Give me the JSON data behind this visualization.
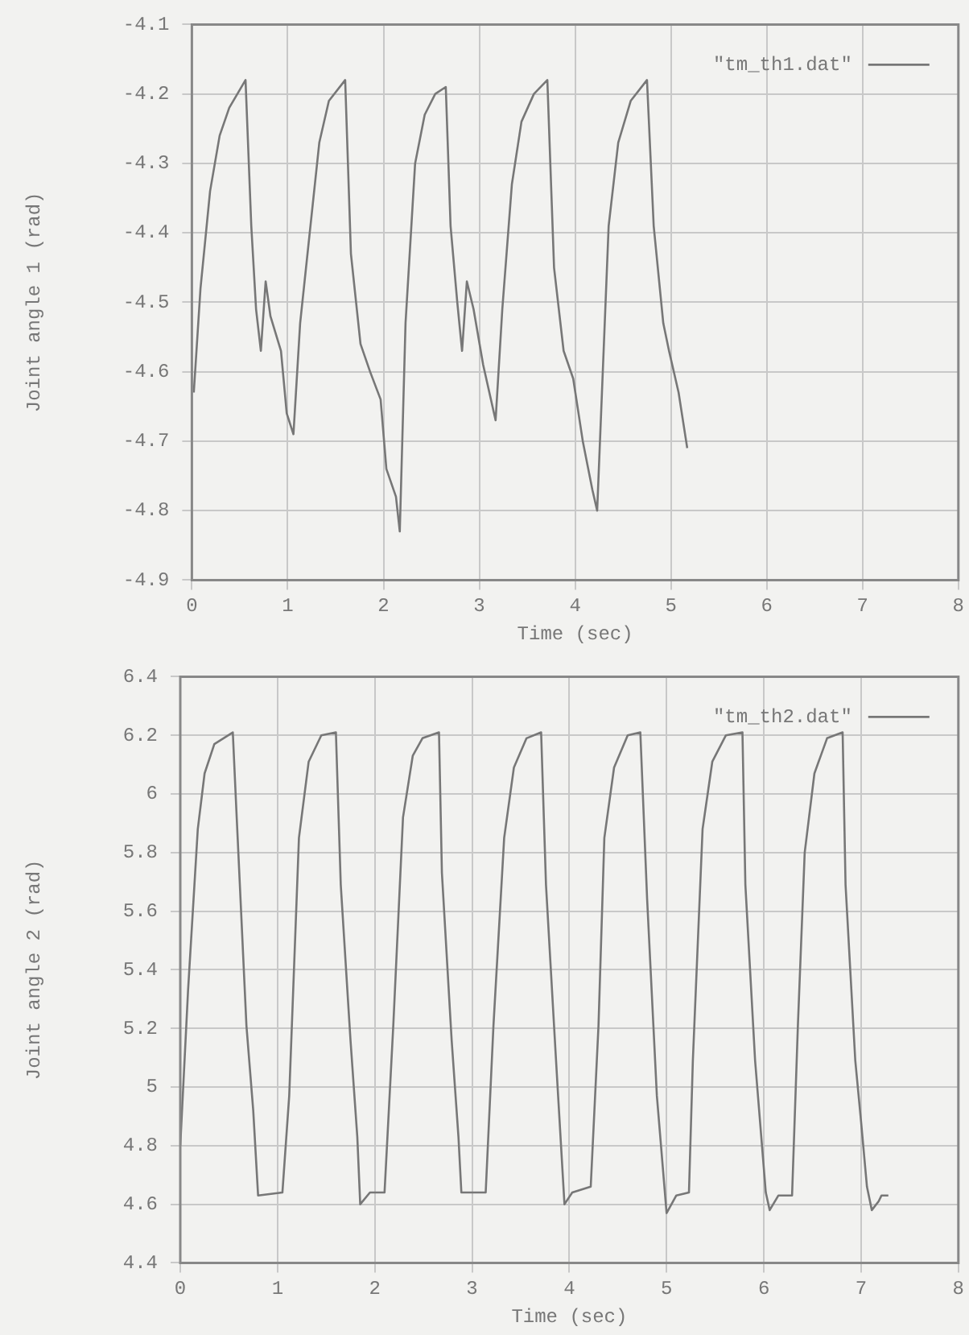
{
  "chart_data": [
    {
      "type": "line",
      "xlabel": "Time (sec)",
      "ylabel": "Joint angle 1 (rad)",
      "xlim": [
        0,
        8
      ],
      "xticks": [
        0,
        1,
        2,
        3,
        4,
        5,
        6,
        7,
        8
      ],
      "ylim": [
        -4.9,
        -4.1
      ],
      "yticks": [
        -4.9,
        -4.8,
        -4.7,
        -4.6,
        -4.5,
        -4.4,
        -4.3,
        -4.2,
        -4.1
      ],
      "grid": true,
      "legend": "top right",
      "line_style": "solid",
      "marker": "none",
      "series": [
        {
          "name": "\"tm_th1.dat\"",
          "color": "#777777",
          "x": [
            0.02,
            0.09,
            0.19,
            0.29,
            0.39,
            0.56,
            0.62,
            0.67,
            0.72,
            0.77,
            0.82,
            0.93,
            0.99,
            1.06,
            1.13,
            1.23,
            1.33,
            1.43,
            1.6,
            1.66,
            1.76,
            1.86,
            1.97,
            2.03,
            2.13,
            2.17,
            2.23,
            2.33,
            2.43,
            2.54,
            2.65,
            2.7,
            2.77,
            2.82,
            2.87,
            2.94,
            3.04,
            3.17,
            3.24,
            3.34,
            3.44,
            3.57,
            3.71,
            3.78,
            3.88,
            3.98,
            4.08,
            4.18,
            4.23,
            4.28,
            4.35,
            4.45,
            4.58,
            4.75,
            4.82,
            4.92,
            4.98,
            5.08,
            5.17
          ],
          "values": [
            -4.63,
            -4.48,
            -4.34,
            -4.26,
            -4.22,
            -4.18,
            -4.39,
            -4.51,
            -4.57,
            -4.47,
            -4.52,
            -4.57,
            -4.66,
            -4.69,
            -4.53,
            -4.4,
            -4.27,
            -4.21,
            -4.18,
            -4.43,
            -4.56,
            -4.6,
            -4.64,
            -4.74,
            -4.78,
            -4.83,
            -4.53,
            -4.3,
            -4.23,
            -4.2,
            -4.19,
            -4.39,
            -4.5,
            -4.57,
            -4.47,
            -4.51,
            -4.59,
            -4.67,
            -4.51,
            -4.33,
            -4.24,
            -4.2,
            -4.18,
            -4.45,
            -4.57,
            -4.61,
            -4.7,
            -4.77,
            -4.8,
            -4.63,
            -4.39,
            -4.27,
            -4.21,
            -4.18,
            -4.39,
            -4.53,
            -4.57,
            -4.63,
            -4.71
          ]
        }
      ]
    },
    {
      "type": "line",
      "xlabel": "Time (sec)",
      "ylabel": "Joint angle 2 (rad)",
      "xlim": [
        0,
        8
      ],
      "xticks": [
        0,
        1,
        2,
        3,
        4,
        5,
        6,
        7,
        8
      ],
      "ylim": [
        4.4,
        6.4
      ],
      "yticks": [
        4.4,
        4.6,
        4.8,
        5,
        5.2,
        5.4,
        5.6,
        5.8,
        6,
        6.2,
        6.4
      ],
      "grid": true,
      "legend": "top right",
      "line_style": "solid",
      "marker": "none",
      "series": [
        {
          "name": "\"tm_th2.dat\"",
          "color": "#777777",
          "x": [
            0,
            0.08,
            0.18,
            0.25,
            0.35,
            0.54,
            0.58,
            0.68,
            0.75,
            0.8,
            1.05,
            1.12,
            1.22,
            1.32,
            1.45,
            1.6,
            1.65,
            1.75,
            1.82,
            1.85,
            1.95,
            2.1,
            2.19,
            2.29,
            2.39,
            2.49,
            2.66,
            2.69,
            2.79,
            2.86,
            2.89,
            3.14,
            3.22,
            3.33,
            3.43,
            3.56,
            3.71,
            3.76,
            3.86,
            3.95,
            4.03,
            4.22,
            4.3,
            4.36,
            4.46,
            4.6,
            4.73,
            4.8,
            4.9,
            5.0,
            5.1,
            5.23,
            5.27,
            5.37,
            5.47,
            5.61,
            5.78,
            5.81,
            5.91,
            6.02,
            6.06,
            6.15,
            6.29,
            6.35,
            6.42,
            6.52,
            6.65,
            6.81,
            6.84,
            6.94,
            7.0,
            7.06,
            7.11,
            7.18,
            7.21,
            7.28
          ],
          "values": [
            4.8,
            5.33,
            5.88,
            6.07,
            6.17,
            6.21,
            5.92,
            5.21,
            4.92,
            4.63,
            4.64,
            4.97,
            5.85,
            6.11,
            6.2,
            6.21,
            5.69,
            5.16,
            4.83,
            4.6,
            4.64,
            4.64,
            5.21,
            5.92,
            6.13,
            6.19,
            6.21,
            5.73,
            5.16,
            4.83,
            4.64,
            4.64,
            5.21,
            5.85,
            6.09,
            6.19,
            6.21,
            5.69,
            5.11,
            4.6,
            4.64,
            4.66,
            5.21,
            5.85,
            6.09,
            6.2,
            6.21,
            5.64,
            4.97,
            4.57,
            4.63,
            4.64,
            5.09,
            5.88,
            6.11,
            6.2,
            6.21,
            5.69,
            5.09,
            4.64,
            4.58,
            4.63,
            4.63,
            5.21,
            5.8,
            6.07,
            6.19,
            6.21,
            5.69,
            5.09,
            4.88,
            4.66,
            4.58,
            4.61,
            4.63,
            4.63
          ]
        }
      ]
    }
  ]
}
